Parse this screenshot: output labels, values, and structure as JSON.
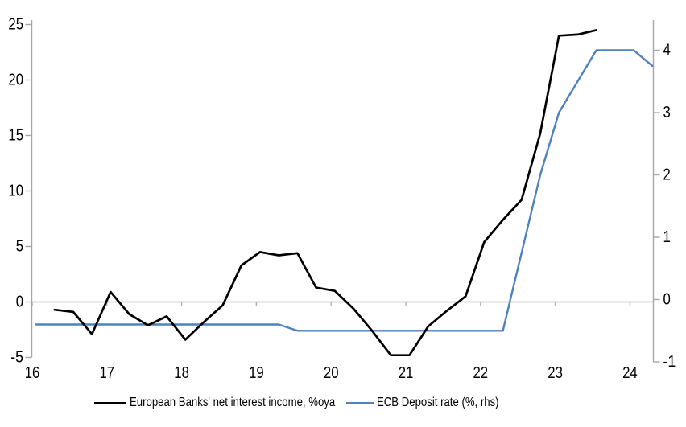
{
  "chart": {
    "title": "",
    "legend_position": "bottom",
    "colors": {
      "axis": "#a6a6a6",
      "zero_line": "#b0b0b0",
      "series_nii": "#000000",
      "series_ecb": "#4f81bd",
      "text": "#000000",
      "background": "#ffffff"
    },
    "legend": [
      {
        "label": "European Banks' net interest income, %oya",
        "color": "#000000"
      },
      {
        "label": "ECB Deposit rate (%, rhs)",
        "color": "#4f81bd"
      }
    ]
  },
  "chart_data": {
    "type": "line",
    "title": "",
    "xlabel": "",
    "ylabel_left": "",
    "ylabel_right": "",
    "grid": false,
    "x_axis": {
      "labels": [
        "16",
        "17",
        "18",
        "19",
        "20",
        "21",
        "22",
        "23",
        "24"
      ],
      "values": [
        16,
        17,
        18,
        19,
        20,
        21,
        22,
        23,
        24
      ],
      "range": [
        16,
        24.3
      ]
    },
    "left_axis": {
      "labels": [
        "25",
        "20",
        "15",
        "10",
        "5",
        "0",
        "-5"
      ],
      "values": [
        25,
        20,
        15,
        10,
        5,
        0,
        -5
      ],
      "range": [
        -5,
        25
      ]
    },
    "right_axis": {
      "labels": [
        "4",
        "3",
        "2",
        "1",
        "0",
        "-1"
      ],
      "values": [
        4,
        3,
        2,
        1,
        0,
        -1
      ],
      "range": [
        -1,
        4.5
      ]
    },
    "series": [
      {
        "name": "European Banks' net interest income, %oya",
        "axis": "left",
        "color": "#000000",
        "x": [
          16.3,
          16.55,
          16.8,
          17.05,
          17.3,
          17.55,
          17.8,
          18.05,
          18.3,
          18.55,
          18.8,
          19.05,
          19.3,
          19.55,
          19.8,
          20.05,
          20.3,
          20.55,
          20.8,
          21.05,
          21.3,
          21.55,
          21.8,
          22.05,
          22.3,
          22.55,
          22.8,
          23.05,
          23.3,
          23.55
        ],
        "y": [
          -0.7,
          -0.9,
          -2.9,
          0.9,
          -1.1,
          -2.1,
          -1.3,
          -3.4,
          -1.8,
          -0.3,
          3.3,
          4.5,
          4.2,
          4.4,
          1.3,
          1.0,
          -0.6,
          -2.6,
          -4.8,
          -4.8,
          -2.2,
          -0.8,
          0.5,
          5.4,
          7.4,
          9.2,
          15.2,
          24.0,
          24.1,
          24.5
        ]
      },
      {
        "name": "ECB Deposit rate (%, rhs)",
        "axis": "right",
        "color": "#4f81bd",
        "x": [
          16.05,
          16.3,
          16.55,
          16.8,
          17.05,
          17.3,
          17.55,
          17.8,
          18.05,
          18.3,
          18.55,
          18.8,
          19.05,
          19.3,
          19.55,
          19.8,
          20.05,
          20.3,
          20.55,
          20.8,
          21.05,
          21.3,
          21.55,
          21.8,
          22.05,
          22.3,
          22.55,
          22.8,
          23.05,
          23.3,
          23.55,
          23.8,
          24.05,
          24.3
        ],
        "y": [
          -0.4,
          -0.4,
          -0.4,
          -0.4,
          -0.4,
          -0.4,
          -0.4,
          -0.4,
          -0.4,
          -0.4,
          -0.4,
          -0.4,
          -0.4,
          -0.4,
          -0.5,
          -0.5,
          -0.5,
          -0.5,
          -0.5,
          -0.5,
          -0.5,
          -0.5,
          -0.5,
          -0.5,
          -0.5,
          -0.5,
          0.75,
          2.0,
          3.0,
          3.5,
          4.0,
          4.0,
          4.0,
          3.75
        ]
      }
    ]
  }
}
